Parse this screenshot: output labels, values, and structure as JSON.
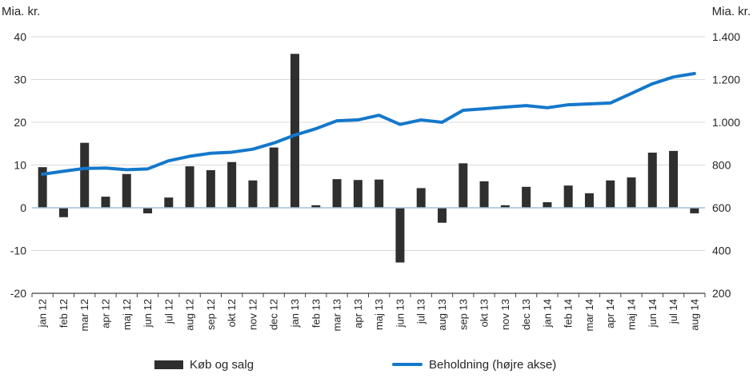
{
  "left_axis_title": "Mia. kr.",
  "right_axis_title": "Mia. kr.",
  "legend": {
    "items": [
      {
        "label": "Køb og salg",
        "swatch": "bar-swatch",
        "color": "#2f2f2f"
      },
      {
        "label": "Beholdning (højre akse)",
        "swatch": "line-swatch",
        "color": "#1478cb"
      }
    ]
  },
  "chart_data": {
    "type": "bar",
    "subtype": "combo bar+line, dual axis",
    "categories": [
      "jan 12",
      "feb 12",
      "mar 12",
      "apr 12",
      "maj 12",
      "jun 12",
      "jul 12",
      "aug 12",
      "sep 12",
      "okt 12",
      "nov 12",
      "dec 12",
      "jan 13",
      "feb 13",
      "mar 13",
      "apr 13",
      "maj 13",
      "jun 13",
      "jul 13",
      "aug 13",
      "sep 13",
      "okt 13",
      "nov 13",
      "dec 13",
      "jan 14",
      "feb 14",
      "mar 14",
      "apr 14",
      "maj 14",
      "jun 14",
      "jul 14",
      "aug 14"
    ],
    "series": [
      {
        "name": "Køb og salg",
        "type": "bar",
        "axis": "left",
        "color": "#2f2f2f",
        "values": [
          9.5,
          -2.2,
          15.2,
          2.6,
          7.9,
          -1.3,
          2.4,
          9.7,
          8.8,
          10.7,
          6.4,
          14.1,
          36,
          0.6,
          6.7,
          6.5,
          6.6,
          -12.8,
          4.6,
          -3.5,
          10.4,
          6.2,
          0.6,
          4.9,
          1.3,
          5.2,
          3.4,
          6.4,
          7.1,
          12.9,
          13.3,
          -1.3
        ]
      },
      {
        "name": "Beholdning (højre akse)",
        "type": "line",
        "axis": "right",
        "color": "#1478cb",
        "values": [
          757,
          771,
          784,
          786,
          778,
          782,
          820,
          841,
          855,
          860,
          874,
          903,
          940,
          970,
          1007,
          1011,
          1033,
          990,
          1011,
          1000,
          1056,
          1063,
          1071,
          1078,
          1068,
          1082,
          1086,
          1090,
          1135,
          1180,
          1212,
          1228
        ]
      }
    ],
    "left_axis": {
      "title": "Mia. kr.",
      "min": -20,
      "max": 40,
      "tick_labels": [
        "40",
        "30",
        "20",
        "10",
        "0",
        "-10",
        "-20"
      ]
    },
    "right_axis": {
      "title": "Mia. kr.",
      "min": 200,
      "max": 1400,
      "tick_labels": [
        "1.400",
        "1.200",
        "1.000",
        "800",
        "600",
        "400",
        "200"
      ]
    },
    "grid": true,
    "legend_position": "bottom",
    "colors": {
      "gridline": "#d9d9d9",
      "axis_line": "#404040",
      "zero_line": "#a3c1d6",
      "text": "#262626"
    }
  }
}
